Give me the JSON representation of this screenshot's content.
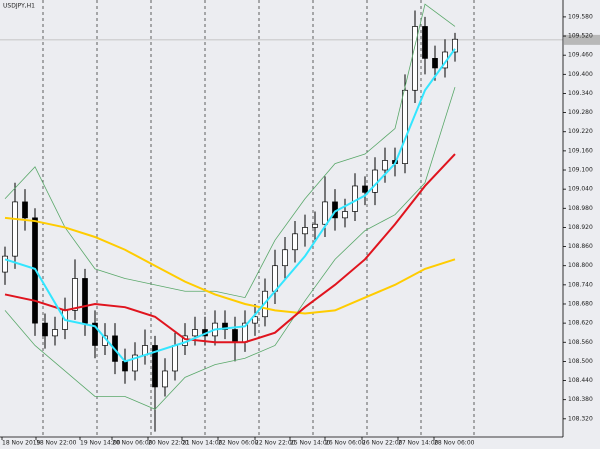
{
  "chart_data": {
    "type": "candlestick",
    "title": "USDJPY,H1",
    "x": [
      0,
      1,
      2,
      3,
      4,
      5,
      6,
      7,
      8,
      9,
      10,
      11,
      12,
      13,
      14,
      15,
      16,
      17,
      18,
      19,
      20,
      21,
      22,
      23,
      24,
      25,
      26,
      27,
      28,
      29,
      30,
      31,
      32,
      33,
      34,
      35,
      36,
      37,
      38,
      39,
      40,
      41,
      42,
      43,
      44,
      45
    ],
    "open": [
      108.78,
      108.83,
      109.0,
      108.95,
      108.62,
      108.58,
      108.6,
      108.66,
      108.76,
      108.62,
      108.55,
      108.58,
      108.5,
      108.47,
      108.52,
      108.55,
      108.42,
      108.47,
      108.55,
      108.58,
      108.6,
      108.58,
      108.62,
      108.6,
      108.56,
      108.62,
      108.64,
      108.72,
      108.8,
      108.85,
      108.9,
      108.92,
      108.93,
      109.0,
      108.95,
      108.97,
      109.05,
      109.03,
      109.1,
      109.13,
      109.12,
      109.35,
      109.55,
      109.45,
      109.42,
      109.47
    ],
    "high": [
      108.86,
      109.06,
      109.04,
      108.98,
      108.65,
      108.64,
      108.7,
      108.82,
      108.79,
      108.66,
      108.62,
      108.62,
      108.54,
      108.56,
      108.6,
      108.58,
      108.51,
      108.59,
      108.62,
      108.64,
      108.64,
      108.66,
      108.66,
      108.64,
      108.66,
      108.68,
      108.76,
      108.85,
      108.89,
      108.94,
      108.96,
      108.97,
      109.08,
      109.04,
      109.01,
      109.09,
      109.08,
      109.14,
      109.17,
      109.17,
      109.4,
      109.6,
      109.58,
      109.49,
      109.51,
      109.53
    ],
    "low": [
      108.74,
      108.79,
      108.91,
      108.58,
      108.54,
      108.55,
      108.57,
      108.63,
      108.58,
      108.51,
      108.52,
      108.46,
      108.43,
      108.44,
      108.49,
      108.28,
      108.39,
      108.44,
      108.52,
      108.55,
      108.55,
      108.55,
      108.57,
      108.5,
      108.53,
      108.58,
      108.61,
      108.68,
      108.76,
      108.81,
      108.86,
      108.88,
      108.89,
      108.91,
      108.92,
      108.94,
      108.99,
      108.99,
      109.06,
      109.08,
      109.09,
      109.31,
      109.4,
      109.38,
      109.39,
      109.44
    ],
    "close": [
      108.83,
      109.0,
      108.95,
      108.62,
      108.58,
      108.6,
      108.66,
      108.76,
      108.62,
      108.55,
      108.58,
      108.5,
      108.47,
      108.52,
      108.55,
      108.42,
      108.47,
      108.55,
      108.58,
      108.6,
      108.58,
      108.62,
      108.6,
      108.56,
      108.62,
      108.64,
      108.72,
      108.8,
      108.85,
      108.9,
      108.92,
      108.93,
      109.0,
      108.95,
      108.97,
      109.05,
      109.03,
      109.1,
      109.13,
      109.12,
      109.35,
      109.55,
      109.45,
      109.42,
      109.47,
      109.51
    ],
    "up_color": "#ffffff",
    "down_color": "#000000",
    "overlays": {
      "x": [
        0,
        3,
        6,
        9,
        12,
        15,
        18,
        21,
        24,
        27,
        30,
        33,
        36,
        39,
        42,
        45
      ],
      "series": [
        {
          "color": "#5aa86a",
          "width": 0.8,
          "values": [
            109.01,
            109.11,
            108.92,
            108.79,
            108.76,
            108.74,
            108.72,
            108.72,
            108.7,
            108.88,
            109.01,
            109.12,
            109.15,
            109.23,
            109.62,
            109.55
          ]
        },
        {
          "color": "#5aa86a",
          "width": 0.8,
          "values": [
            108.66,
            108.55,
            108.47,
            108.39,
            108.39,
            108.35,
            108.45,
            108.49,
            108.51,
            108.55,
            108.69,
            108.82,
            108.91,
            108.96,
            109.06,
            109.36
          ]
        },
        {
          "color": "#ffcc00",
          "width": 2,
          "values": [
            108.95,
            108.94,
            108.92,
            108.89,
            108.85,
            108.8,
            108.75,
            108.71,
            108.68,
            108.66,
            108.65,
            108.66,
            108.7,
            108.74,
            108.79,
            108.82
          ]
        },
        {
          "color": "#e0141e",
          "width": 2,
          "values": [
            108.71,
            108.69,
            108.66,
            108.68,
            108.67,
            108.64,
            108.57,
            108.56,
            108.56,
            108.59,
            108.67,
            108.74,
            108.82,
            108.93,
            109.05,
            109.15
          ]
        },
        {
          "color": "#33e6ff",
          "width": 2,
          "values": [
            108.82,
            108.79,
            108.63,
            108.61,
            108.5,
            108.53,
            108.56,
            108.6,
            108.61,
            108.72,
            108.83,
            108.97,
            109.02,
            109.12,
            109.35,
            109.48
          ]
        }
      ]
    },
    "price_line": 109.508,
    "day_separators": [
      3.8,
      9.2,
      14.6,
      20,
      25.4,
      30.8,
      36.2,
      41.6,
      46.9
    ],
    "xlim": [
      -0.5,
      55.8
    ],
    "ylim": [
      108.263,
      109.633
    ],
    "xticks": [
      {
        "value": -0.3,
        "label": "18 Nov 2019"
      },
      {
        "value": 3.1,
        "label": "18 Nov 22:00"
      },
      {
        "value": 7.5,
        "label": "19 Nov 14:00"
      },
      {
        "value": 10.7,
        "label": "20 Nov 06:00"
      },
      {
        "value": 14.3,
        "label": "20 Nov 22:00"
      },
      {
        "value": 17.7,
        "label": "21 Nov 14:00"
      },
      {
        "value": 21.3,
        "label": "22 Nov 06:00"
      },
      {
        "value": 25,
        "label": "22 Nov 22:00"
      },
      {
        "value": 28.5,
        "label": "25 Nov 14:00"
      },
      {
        "value": 32,
        "label": "26 Nov 06:00"
      },
      {
        "value": 35.7,
        "label": "26 Nov 22:00"
      },
      {
        "value": 39.3,
        "label": "27 Nov 14:00"
      },
      {
        "value": 42.9,
        "label": "28 Nov 06:00"
      }
    ],
    "yticks": [
      {
        "value": 109.58,
        "label": "109.580"
      },
      {
        "value": 109.52,
        "label": "109.520"
      },
      {
        "value": 109.46,
        "label": "109.460"
      },
      {
        "value": 109.4,
        "label": "109.400"
      },
      {
        "value": 109.34,
        "label": "109.340"
      },
      {
        "value": 109.28,
        "label": "109.280"
      },
      {
        "value": 109.22,
        "label": "109.220"
      },
      {
        "value": 109.16,
        "label": "109.160"
      },
      {
        "value": 109.1,
        "label": "109.100"
      },
      {
        "value": 109.04,
        "label": "109.040"
      },
      {
        "value": 108.98,
        "label": "108.980"
      },
      {
        "value": 108.92,
        "label": "108.920"
      },
      {
        "value": 108.86,
        "label": "108.860"
      },
      {
        "value": 108.8,
        "label": "108.800"
      },
      {
        "value": 108.74,
        "label": "108.740"
      },
      {
        "value": 108.68,
        "label": "108.680"
      },
      {
        "value": 108.62,
        "label": "108.620"
      },
      {
        "value": 108.56,
        "label": "108.560"
      },
      {
        "value": 108.5,
        "label": "108.500"
      },
      {
        "value": 108.44,
        "label": "108.440"
      },
      {
        "value": 108.38,
        "label": "108.380"
      },
      {
        "value": 108.32,
        "label": "108.320"
      }
    ]
  }
}
